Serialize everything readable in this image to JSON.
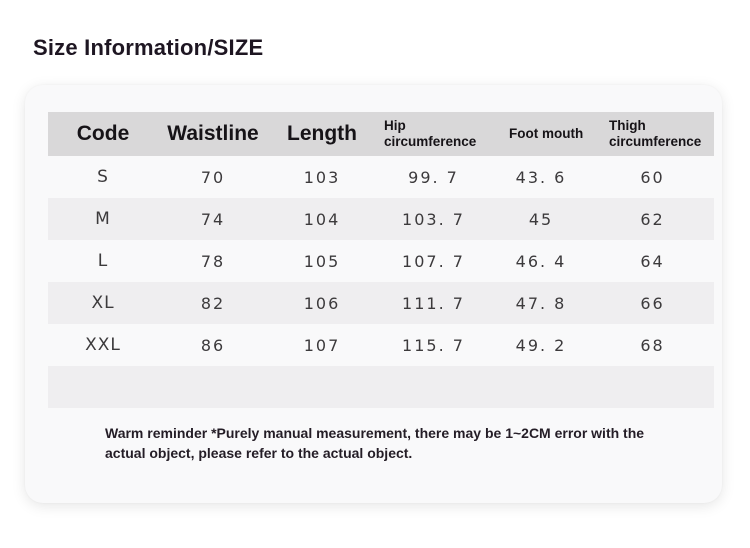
{
  "page": {
    "title": "Size Information/SIZE"
  },
  "table": {
    "columns": [
      {
        "key": "code",
        "label": "Code",
        "size": "large"
      },
      {
        "key": "waistline",
        "label": "Waistline",
        "size": "large"
      },
      {
        "key": "length",
        "label": "Length",
        "size": "large"
      },
      {
        "key": "hip",
        "label": "Hip circumference",
        "size": "small"
      },
      {
        "key": "foot",
        "label": "Foot mouth",
        "size": "small"
      },
      {
        "key": "thigh",
        "label": "Thigh circumference",
        "size": "small"
      }
    ],
    "rows": [
      [
        "S",
        "70",
        "103",
        "99. 7",
        "43. 6",
        "60"
      ],
      [
        "M",
        "74",
        "104",
        "103. 7",
        "45",
        "62"
      ],
      [
        "L",
        "78",
        "105",
        "107. 7",
        "46. 4",
        "64"
      ],
      [
        "XL",
        "82",
        "106",
        "111. 7",
        "47. 8",
        "66"
      ],
      [
        "XXL",
        "86",
        "107",
        "115. 7",
        "49. 2",
        "68"
      ]
    ]
  },
  "note": {
    "text": "Warm reminder *Purely manual measurement, there may be 1~2CM error with the actual object, please refer to the actual object."
  },
  "colors": {
    "header_band": "#d9d8d9",
    "stripe_row": "#efeef0",
    "card_background": "#f9f9fa",
    "heading_text": "#1e1622",
    "data_text": "#3c3a3c"
  }
}
